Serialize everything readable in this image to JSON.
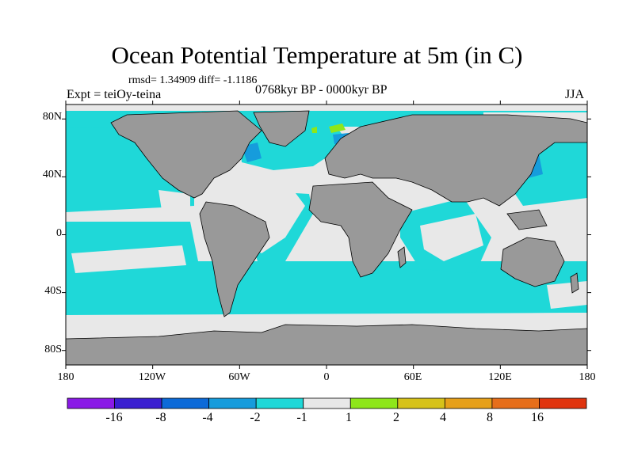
{
  "title": "Ocean Potential Temperature at 5m (in C)",
  "stats": "rmsd= 1.34909 diff= -1.1186",
  "experiment": "Expt = teiOy-teina",
  "period": "0768kyr BP - 0000kyr BP",
  "season": "JJA",
  "lat_ticks": [
    "80N",
    "40N",
    "0",
    "40S",
    "80S"
  ],
  "lon_ticks": [
    "180",
    "120W",
    "60W",
    "0",
    "60E",
    "120E",
    "180"
  ],
  "colorbar": {
    "labels": [
      "-16",
      "-8",
      "-4",
      "-2",
      "-1",
      "1",
      "2",
      "4",
      "8",
      "16"
    ],
    "colors": [
      "#8a1ae6",
      "#3a1fd0",
      "#0c6ad8",
      "#169cdc",
      "#1fd8d8",
      "#e8e8e8",
      "#8ee61a",
      "#d6c21a",
      "#e6a01a",
      "#e66e1a",
      "#e0340e"
    ]
  },
  "map_colors": {
    "land": "#999999",
    "neutral": "#e8e8e8",
    "cyan": "#1fd8d8",
    "blue": "#169cdc",
    "green": "#8ee61a"
  }
}
